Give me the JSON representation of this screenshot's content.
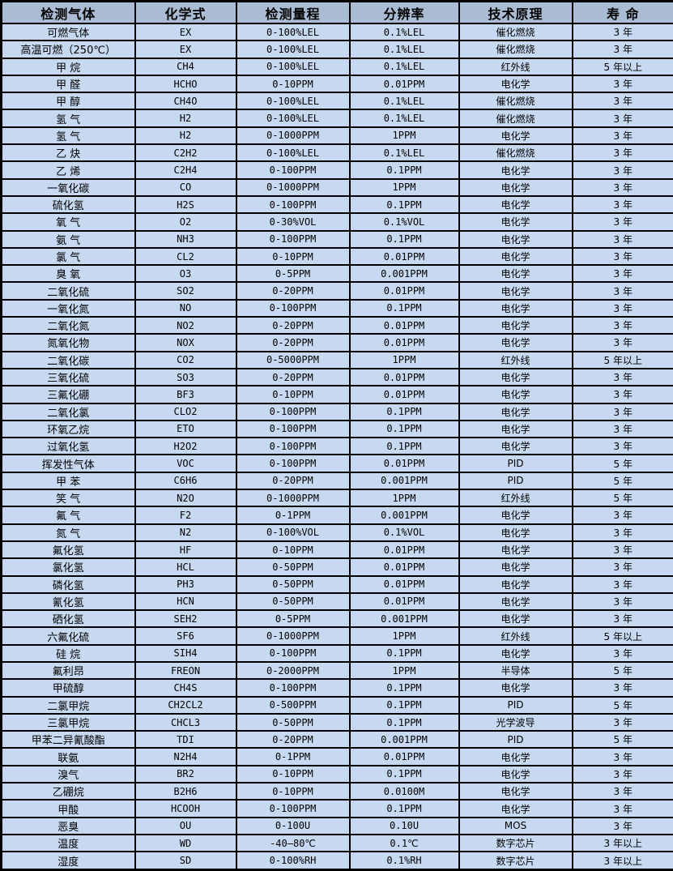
{
  "table": {
    "column_keys": [
      "gas",
      "formula",
      "range",
      "resolution",
      "principle",
      "lifespan"
    ],
    "headers": [
      "检测气体",
      "化学式",
      "检测量程",
      "分辨率",
      "技术原理",
      "寿 命"
    ],
    "rows": [
      [
        "可燃气体",
        "EX",
        "0-100%LEL",
        "0.1%LEL",
        "催化燃烧",
        "3 年"
      ],
      [
        "高温可燃（250℃）",
        "EX",
        "0-100%LEL",
        "0.1%LEL",
        "催化燃烧",
        "3 年"
      ],
      [
        "甲 烷",
        "CH4",
        "0-100%LEL",
        "0.1%LEL",
        "红外线",
        "5 年以上"
      ],
      [
        "甲 醛",
        "HCHO",
        "0-10PPM",
        "0.01PPM",
        "电化学",
        "3 年"
      ],
      [
        "甲 醇",
        "CH4O",
        "0-100%LEL",
        "0.1%LEL",
        "催化燃烧",
        "3 年"
      ],
      [
        "氢 气",
        "H2",
        "0-100%LEL",
        "0.1%LEL",
        "催化燃烧",
        "3 年"
      ],
      [
        "氢 气",
        "H2",
        "0-1000PPM",
        "1PPM",
        "电化学",
        "3 年"
      ],
      [
        "乙 炔",
        "C2H2",
        "0-100%LEL",
        "0.1%LEL",
        "催化燃烧",
        "3 年"
      ],
      [
        "乙 烯",
        "C2H4",
        "0-100PPM",
        "0.1PPM",
        "电化学",
        "3 年"
      ],
      [
        "一氧化碳",
        "CO",
        "0-1000PPM",
        "1PPM",
        "电化学",
        "3 年"
      ],
      [
        "硫化氢",
        "H2S",
        "0-100PPM",
        "0.1PPM",
        "电化学",
        "3 年"
      ],
      [
        "氧 气",
        "O2",
        "0-30%VOL",
        "0.1%VOL",
        "电化学",
        "3 年"
      ],
      [
        "氨 气",
        "NH3",
        "0-100PPM",
        "0.1PPM",
        "电化学",
        "3 年"
      ],
      [
        "氯 气",
        "CL2",
        "0-10PPM",
        "0.01PPM",
        "电化学",
        "3 年"
      ],
      [
        "臭 氧",
        "O3",
        "0-5PPM",
        "0.001PPM",
        "电化学",
        "3 年"
      ],
      [
        "二氧化硫",
        "SO2",
        "0-20PPM",
        "0.01PPM",
        "电化学",
        "3 年"
      ],
      [
        "一氧化氮",
        "NO",
        "0-100PPM",
        "0.1PPM",
        "电化学",
        "3 年"
      ],
      [
        "二氧化氮",
        "NO2",
        "0-20PPM",
        "0.01PPM",
        "电化学",
        "3 年"
      ],
      [
        "氮氧化物",
        "NOX",
        "0-20PPM",
        "0.01PPM",
        "电化学",
        "3 年"
      ],
      [
        "二氧化碳",
        "CO2",
        "0-5000PPM",
        "1PPM",
        "红外线",
        "5 年以上"
      ],
      [
        "三氧化硫",
        "SO3",
        "0-20PPM",
        "0.01PPM",
        "电化学",
        "3 年"
      ],
      [
        "三氟化硼",
        "BF3",
        "0-10PPM",
        "0.01PPM",
        "电化学",
        "3 年"
      ],
      [
        "二氧化氯",
        "CLO2",
        "0-100PPM",
        "0.1PPM",
        "电化学",
        "3 年"
      ],
      [
        "环氧乙烷",
        "ETO",
        "0-100PPM",
        "0.1PPM",
        "电化学",
        "3 年"
      ],
      [
        "过氧化氢",
        "H2O2",
        "0-100PPM",
        "0.1PPM",
        "电化学",
        "3 年"
      ],
      [
        "挥发性气体",
        "VOC",
        "0-100PPM",
        "0.01PPM",
        "PID",
        "5 年"
      ],
      [
        "甲 苯",
        "C6H6",
        "0-20PPM",
        "0.001PPM",
        "PID",
        "5 年"
      ],
      [
        "笑 气",
        "N2O",
        "0-1000PPM",
        "1PPM",
        "红外线",
        "5 年"
      ],
      [
        "氟 气",
        "F2",
        "0-1PPM",
        "0.001PPM",
        "电化学",
        "3 年"
      ],
      [
        "氮 气",
        "N2",
        "0-100%VOL",
        "0.1%VOL",
        "电化学",
        "3 年"
      ],
      [
        "氟化氢",
        "HF",
        "0-10PPM",
        "0.01PPM",
        "电化学",
        "3 年"
      ],
      [
        "氯化氢",
        "HCL",
        "0-50PPM",
        "0.01PPM",
        "电化学",
        "3 年"
      ],
      [
        "磷化氢",
        "PH3",
        "0-50PPM",
        "0.01PPM",
        "电化学",
        "3 年"
      ],
      [
        "氰化氢",
        "HCN",
        "0-50PPM",
        "0.01PPM",
        "电化学",
        "3 年"
      ],
      [
        "硒化氢",
        "SEH2",
        "0-5PPM",
        "0.001PPM",
        "电化学",
        "3 年"
      ],
      [
        "六氟化硫",
        "SF6",
        "0-1000PPM",
        "1PPM",
        "红外线",
        "5 年以上"
      ],
      [
        "硅 烷",
        "SIH4",
        "0-100PPM",
        "0.1PPM",
        "电化学",
        "3 年"
      ],
      [
        "氟利昂",
        "FREON",
        "0-2000PPM",
        "1PPM",
        "半导体",
        "5 年"
      ],
      [
        "甲硫醇",
        "CH4S",
        "0-100PPM",
        "0.1PPM",
        "电化学",
        "3 年"
      ],
      [
        "二氯甲烷",
        "CH2CL2",
        "0-500PPM",
        "0.1PPM",
        "PID",
        "5 年"
      ],
      [
        "三氯甲烷",
        "CHCL3",
        "0-50PPM",
        "0.1PPM",
        "光学波导",
        "3 年"
      ],
      [
        "甲苯二异氰酸酯",
        "TDI",
        "0-20PPM",
        "0.001PPM",
        "PID",
        "5 年"
      ],
      [
        "联氨",
        "N2H4",
        "0-1PPM",
        "0.01PPM",
        "电化学",
        "3 年"
      ],
      [
        "溴气",
        "BR2",
        "0-10PPM",
        "0.1PPM",
        "电化学",
        "3 年"
      ],
      [
        "乙硼烷",
        "B2H6",
        "0-10PPM",
        "0.0100M",
        "电化学",
        "3 年"
      ],
      [
        "甲酸",
        "HCOOH",
        "0-100PPM",
        "0.1PPM",
        "电化学",
        "3 年"
      ],
      [
        "恶臭",
        "OU",
        "0-100U",
        "0.10U",
        "MOS",
        "3 年"
      ],
      [
        "温度",
        "WD",
        "-40—80℃",
        "0.1℃",
        "数字芯片",
        "3 年以上"
      ],
      [
        "湿度",
        "SD",
        "0-100%RH",
        "0.1%RH",
        "数字芯片",
        "3 年以上"
      ]
    ]
  },
  "colors": {
    "header_bg": "#aabcd4",
    "row_bg": "#c7d9f1",
    "border": "#000000",
    "text": "#000000"
  }
}
